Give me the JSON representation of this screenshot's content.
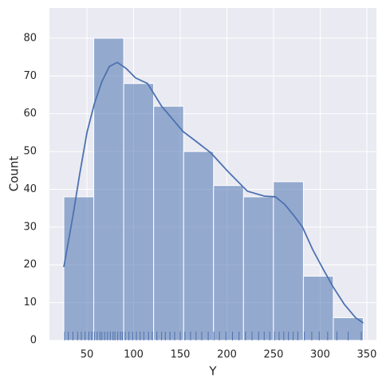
{
  "chart_data": {
    "type": "histogram",
    "xlabel": "Y",
    "ylabel": "Count",
    "bins": [
      25.2,
      57.3,
      89.4,
      121.5,
      153.6,
      185.7,
      217.8,
      249.9,
      282,
      314.1,
      346.2
    ],
    "values": [
      38,
      80,
      68,
      62,
      50,
      41,
      38,
      42,
      17,
      6
    ],
    "color": "#4c72b0",
    "kde": {
      "x": [
        25.2,
        35,
        42,
        50,
        58,
        66,
        74,
        82.5,
        92,
        102,
        115,
        130,
        153,
        168,
        183,
        200,
        222,
        240,
        252,
        262,
        272,
        281,
        292,
        304,
        314,
        326,
        338,
        346.2
      ],
      "y": [
        19.4,
        33,
        43.7,
        55,
        62.7,
        68.5,
        72.5,
        73.6,
        72,
        69.5,
        68,
        62,
        55.3,
        52.5,
        49.6,
        45,
        39.5,
        38.2,
        38,
        36,
        33,
        30,
        24,
        18.5,
        14.1,
        9.5,
        6,
        4.6
      ]
    },
    "rug": [
      26,
      30,
      35,
      40,
      44,
      48,
      52,
      55,
      58,
      61,
      64,
      66,
      69,
      72,
      75,
      78,
      80,
      83,
      86,
      88,
      91,
      95,
      99,
      103,
      107,
      111,
      116,
      120,
      125,
      130,
      134,
      139,
      144,
      150,
      155,
      161,
      167,
      173,
      180,
      186,
      192,
      199,
      206,
      213,
      220,
      227,
      234,
      240,
      246,
      251,
      256,
      261,
      266,
      271,
      276,
      283,
      291,
      299,
      308,
      318,
      330,
      344
    ],
    "xlim": [
      9.8,
      360.3
    ],
    "ylim": [
      0,
      88
    ],
    "xticks": [
      50,
      100,
      150,
      200,
      250,
      300,
      350
    ],
    "yticks": [
      0,
      10,
      20,
      30,
      40,
      50,
      60,
      70,
      80
    ],
    "grid": true
  }
}
